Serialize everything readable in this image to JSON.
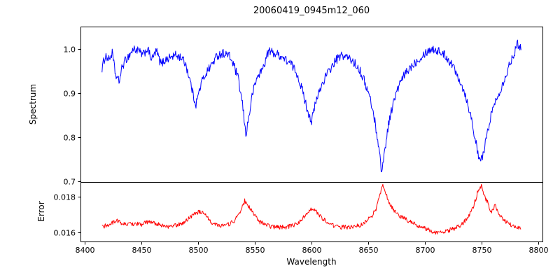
{
  "chart_data": {
    "type": "line",
    "title": "20060419_0945m12_060",
    "xlabel": "Wavelength",
    "x_range": [
      8396,
      8804
    ],
    "x_ticks": [
      8400,
      8450,
      8500,
      8550,
      8600,
      8650,
      8700,
      8750,
      8800
    ],
    "grid": false,
    "legend": "none",
    "panels": [
      {
        "ylabel": "Spectrum",
        "color": "#0000ff",
        "ylim": [
          0.698,
          1.05
        ],
        "y_tick_values": [
          1.0,
          0.9,
          0.8,
          0.7
        ],
        "y_tick_labels": [
          "1.0",
          "0.9",
          "0.8",
          "0.7"
        ],
        "series": {
          "name": "spectrum",
          "noise_amplitude": 0.01,
          "points": [
            [
              8415,
              0.955
            ],
            [
              8418,
              0.985
            ],
            [
              8421,
              0.975
            ],
            [
              8424,
              0.99
            ],
            [
              8427,
              0.94
            ],
            [
              8430,
              0.925
            ],
            [
              8433,
              0.96
            ],
            [
              8436,
              0.975
            ],
            [
              8439,
              0.985
            ],
            [
              8443,
              1.0
            ],
            [
              8447,
              0.995
            ],
            [
              8451,
              0.985
            ],
            [
              8455,
              1.0
            ],
            [
              8459,
              0.975
            ],
            [
              8463,
              0.995
            ],
            [
              8467,
              0.965
            ],
            [
              8471,
              0.975
            ],
            [
              8475,
              0.98
            ],
            [
              8480,
              0.985
            ],
            [
              8485,
              0.98
            ],
            [
              8489,
              0.965
            ],
            [
              8493,
              0.925
            ],
            [
              8496,
              0.89
            ],
            [
              8498,
              0.875
            ],
            [
              8500,
              0.895
            ],
            [
              8503,
              0.925
            ],
            [
              8507,
              0.945
            ],
            [
              8512,
              0.965
            ],
            [
              8517,
              0.985
            ],
            [
              8522,
              0.99
            ],
            [
              8527,
              0.985
            ],
            [
              8531,
              0.965
            ],
            [
              8535,
              0.935
            ],
            [
              8539,
              0.875
            ],
            [
              8542,
              0.805
            ],
            [
              8545,
              0.85
            ],
            [
              8548,
              0.9
            ],
            [
              8552,
              0.935
            ],
            [
              8557,
              0.955
            ],
            [
              8562,
              0.995
            ],
            [
              8567,
              0.99
            ],
            [
              8572,
              0.985
            ],
            [
              8577,
              0.975
            ],
            [
              8582,
              0.965
            ],
            [
              8587,
              0.945
            ],
            [
              8592,
              0.905
            ],
            [
              8596,
              0.865
            ],
            [
              8600,
              0.835
            ],
            [
              8603,
              0.87
            ],
            [
              8607,
              0.905
            ],
            [
              8612,
              0.935
            ],
            [
              8617,
              0.955
            ],
            [
              8622,
              0.975
            ],
            [
              8627,
              0.985
            ],
            [
              8632,
              0.98
            ],
            [
              8637,
              0.97
            ],
            [
              8642,
              0.955
            ],
            [
              8647,
              0.925
            ],
            [
              8652,
              0.885
            ],
            [
              8656,
              0.835
            ],
            [
              8659,
              0.785
            ],
            [
              8662,
              0.72
            ],
            [
              8665,
              0.775
            ],
            [
              8668,
              0.83
            ],
            [
              8672,
              0.875
            ],
            [
              8677,
              0.915
            ],
            [
              8682,
              0.94
            ],
            [
              8688,
              0.96
            ],
            [
              8694,
              0.975
            ],
            [
              8700,
              0.99
            ],
            [
              8706,
              1.0
            ],
            [
              8712,
              0.995
            ],
            [
              8718,
              0.985
            ],
            [
              8724,
              0.965
            ],
            [
              8730,
              0.935
            ],
            [
              8736,
              0.895
            ],
            [
              8741,
              0.845
            ],
            [
              8745,
              0.79
            ],
            [
              8748,
              0.745
            ],
            [
              8751,
              0.755
            ],
            [
              8754,
              0.79
            ],
            [
              8758,
              0.845
            ],
            [
              8763,
              0.885
            ],
            [
              8768,
              0.915
            ],
            [
              8773,
              0.95
            ],
            [
              8778,
              0.985
            ],
            [
              8782,
              1.01
            ],
            [
              8785,
              1.005
            ]
          ]
        },
        "absorption_features": [
          {
            "center": 8498,
            "min_flux": 0.875
          },
          {
            "center": 8542,
            "min_flux": 0.8
          },
          {
            "center": 8600,
            "min_flux": 0.835
          },
          {
            "center": 8662,
            "min_flux": 0.72
          },
          {
            "center": 8750,
            "min_flux": 0.735
          }
        ]
      },
      {
        "ylabel": "Error",
        "color": "#ff0000",
        "ylim": [
          0.0155,
          0.0188
        ],
        "y_tick_values": [
          0.018,
          0.016
        ],
        "y_tick_labels": [
          "0.018",
          "0.016"
        ],
        "series": {
          "name": "error",
          "noise_amplitude": 0.00012,
          "points": [
            [
              8415,
              0.0163
            ],
            [
              8420,
              0.0164
            ],
            [
              8425,
              0.01655
            ],
            [
              8428,
              0.0167
            ],
            [
              8432,
              0.0165
            ],
            [
              8438,
              0.01645
            ],
            [
              8444,
              0.0165
            ],
            [
              8450,
              0.01645
            ],
            [
              8456,
              0.0166
            ],
            [
              8462,
              0.0165
            ],
            [
              8468,
              0.0164
            ],
            [
              8474,
              0.0163
            ],
            [
              8480,
              0.0164
            ],
            [
              8486,
              0.0165
            ],
            [
              8492,
              0.0168
            ],
            [
              8497,
              0.0171
            ],
            [
              8502,
              0.01715
            ],
            [
              8507,
              0.0169
            ],
            [
              8513,
              0.0165
            ],
            [
              8519,
              0.0164
            ],
            [
              8525,
              0.0164
            ],
            [
              8531,
              0.0166
            ],
            [
              8536,
              0.017
            ],
            [
              8541,
              0.01775
            ],
            [
              8545,
              0.0174
            ],
            [
              8549,
              0.017
            ],
            [
              8554,
              0.0166
            ],
            [
              8560,
              0.0164
            ],
            [
              8566,
              0.0163
            ],
            [
              8572,
              0.0163
            ],
            [
              8578,
              0.0163
            ],
            [
              8584,
              0.0164
            ],
            [
              8590,
              0.0166
            ],
            [
              8595,
              0.017
            ],
            [
              8599,
              0.01735
            ],
            [
              8603,
              0.0172
            ],
            [
              8608,
              0.0169
            ],
            [
              8613,
              0.0166
            ],
            [
              8619,
              0.0164
            ],
            [
              8625,
              0.0163
            ],
            [
              8631,
              0.0163
            ],
            [
              8637,
              0.0163
            ],
            [
              8643,
              0.0164
            ],
            [
              8648,
              0.0166
            ],
            [
              8653,
              0.0169
            ],
            [
              8657,
              0.0173
            ],
            [
              8660,
              0.018
            ],
            [
              8663,
              0.0187
            ],
            [
              8666,
              0.0181
            ],
            [
              8669,
              0.0176
            ],
            [
              8673,
              0.0172
            ],
            [
              8678,
              0.0169
            ],
            [
              8684,
              0.0167
            ],
            [
              8690,
              0.0165
            ],
            [
              8696,
              0.0163
            ],
            [
              8702,
              0.0162
            ],
            [
              8708,
              0.016
            ],
            [
              8714,
              0.016
            ],
            [
              8720,
              0.0161
            ],
            [
              8726,
              0.0162
            ],
            [
              8732,
              0.0164
            ],
            [
              8738,
              0.0168
            ],
            [
              8743,
              0.0174
            ],
            [
              8747,
              0.0183
            ],
            [
              8750,
              0.0186
            ],
            [
              8753,
              0.018
            ],
            [
              8756,
              0.0176
            ],
            [
              8759,
              0.0171
            ],
            [
              8762,
              0.0175
            ],
            [
              8765,
              0.0171
            ],
            [
              8769,
              0.0167
            ],
            [
              8774,
              0.0165
            ],
            [
              8779,
              0.0163
            ],
            [
              8785,
              0.0162
            ]
          ]
        }
      }
    ]
  }
}
